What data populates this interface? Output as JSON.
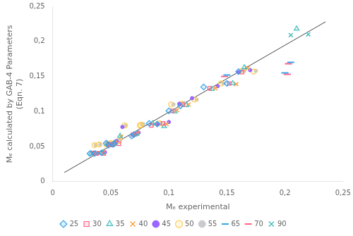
{
  "chart_data": {
    "type": "scatter",
    "xlabel": "Mₑ experimental",
    "ylabel": "Mₑ calculated by GAB-4 Parameters\n(Eqn. 7)",
    "xlim": [
      0,
      0.25
    ],
    "ylim": [
      0,
      0.25
    ],
    "xticks": [
      0,
      {
        "value": 0.05,
        "label": "0,05"
      },
      {
        "value": 0.1,
        "label": "0,1"
      },
      {
        "value": 0.15,
        "label": "0,15"
      },
      {
        "value": 0.2,
        "label": "0,2"
      },
      {
        "value": 0.25,
        "label": "0,25"
      }
    ],
    "yticks": [
      0,
      {
        "value": 0.05,
        "label": "0,05"
      },
      {
        "value": 0.1,
        "label": "0,1"
      },
      {
        "value": 0.15,
        "label": "0,15"
      },
      {
        "value": 0.2,
        "label": "0,2"
      },
      {
        "value": 0.25,
        "label": "0,25"
      }
    ],
    "grid": false,
    "legend": "bottom",
    "reference_line": {
      "x": [
        0.01,
        0.235
      ],
      "values": [
        0.013,
        0.228
      ],
      "color": "#444444"
    },
    "series": [
      {
        "name": "25",
        "marker": "diamond",
        "x": [
          0.032,
          0.036,
          0.042,
          0.046,
          0.048,
          0.052,
          0.053,
          0.068,
          0.07,
          0.083,
          0.09,
          0.1,
          0.11,
          0.13,
          0.15,
          0.16
        ],
        "values": [
          0.04,
          0.04,
          0.041,
          0.055,
          0.052,
          0.053,
          0.054,
          0.065,
          0.067,
          0.083,
          0.082,
          0.101,
          0.108,
          0.135,
          0.14,
          0.157
        ]
      },
      {
        "name": "30",
        "marker": "square",
        "x": [
          0.035,
          0.038,
          0.044,
          0.048,
          0.05,
          0.053,
          0.057,
          0.069,
          0.071,
          0.085,
          0.095,
          0.103,
          0.112,
          0.135,
          0.152,
          0.163
        ],
        "values": [
          0.041,
          0.04,
          0.04,
          0.053,
          0.052,
          0.054,
          0.054,
          0.067,
          0.068,
          0.08,
          0.083,
          0.101,
          0.11,
          0.133,
          0.14,
          0.156
        ]
      },
      {
        "name": "35",
        "marker": "triangle",
        "x": [
          0.033,
          0.037,
          0.043,
          0.047,
          0.049,
          0.053,
          0.058,
          0.07,
          0.072,
          0.086,
          0.096,
          0.105,
          0.115,
          0.137,
          0.155,
          0.165,
          0.21
        ],
        "values": [
          0.04,
          0.04,
          0.041,
          0.054,
          0.052,
          0.055,
          0.065,
          0.067,
          0.068,
          0.083,
          0.079,
          0.1,
          0.109,
          0.132,
          0.14,
          0.163,
          0.218
        ]
      },
      {
        "name": "40",
        "marker": "x",
        "x": [
          0.034,
          0.038,
          0.044,
          0.048,
          0.05,
          0.054,
          0.059,
          0.072,
          0.073,
          0.088,
          0.098,
          0.107,
          0.117,
          0.14,
          0.158,
          0.168
        ],
        "values": [
          0.04,
          0.041,
          0.042,
          0.054,
          0.053,
          0.056,
          0.064,
          0.068,
          0.069,
          0.082,
          0.082,
          0.102,
          0.11,
          0.133,
          0.139,
          0.162
        ]
      },
      {
        "name": "45",
        "marker": "point",
        "x": [
          0.035,
          0.039,
          0.045,
          0.049,
          0.051,
          0.055,
          0.06,
          0.073,
          0.074,
          0.09,
          0.1,
          0.109,
          0.12,
          0.142,
          0.16,
          0.17
        ],
        "values": [
          0.041,
          0.041,
          0.042,
          0.054,
          0.053,
          0.058,
          0.078,
          0.069,
          0.07,
          0.082,
          0.085,
          0.111,
          0.119,
          0.136,
          0.156,
          0.159
        ]
      },
      {
        "name": "50",
        "marker": "circle",
        "x": [
          0.036,
          0.04,
          0.046,
          0.05,
          0.052,
          0.057,
          0.062,
          0.075,
          0.076,
          0.092,
          0.102,
          0.111,
          0.122,
          0.145,
          0.163,
          0.173
        ],
        "values": [
          0.052,
          0.053,
          0.053,
          0.055,
          0.054,
          0.058,
          0.08,
          0.08,
          0.081,
          0.083,
          0.11,
          0.111,
          0.117,
          0.14,
          0.158,
          0.157
        ]
      },
      {
        "name": "55",
        "marker": "point",
        "x": [
          0.037,
          0.041,
          0.047,
          0.051,
          0.053,
          0.058,
          0.063,
          0.077,
          0.078,
          0.093,
          0.104,
          0.113,
          0.124,
          0.147,
          0.165,
          0.175
        ],
        "values": [
          0.052,
          0.053,
          0.054,
          0.055,
          0.054,
          0.059,
          0.08,
          0.082,
          0.082,
          0.083,
          0.11,
          0.112,
          0.117,
          0.14,
          0.158,
          0.158
        ]
      },
      {
        "name": "65",
        "marker": "hline",
        "x": [
          0.15,
          0.2,
          0.205
        ],
        "values": [
          0.152,
          0.155,
          0.17
        ]
      },
      {
        "name": "70",
        "marker": "hline",
        "x": [
          0.148,
          0.202,
          0.203
        ],
        "values": [
          0.15,
          0.153,
          0.168
        ]
      },
      {
        "name": "90",
        "marker": "x",
        "x": [
          0.205,
          0.22
        ],
        "values": [
          0.209,
          0.21
        ]
      }
    ]
  }
}
